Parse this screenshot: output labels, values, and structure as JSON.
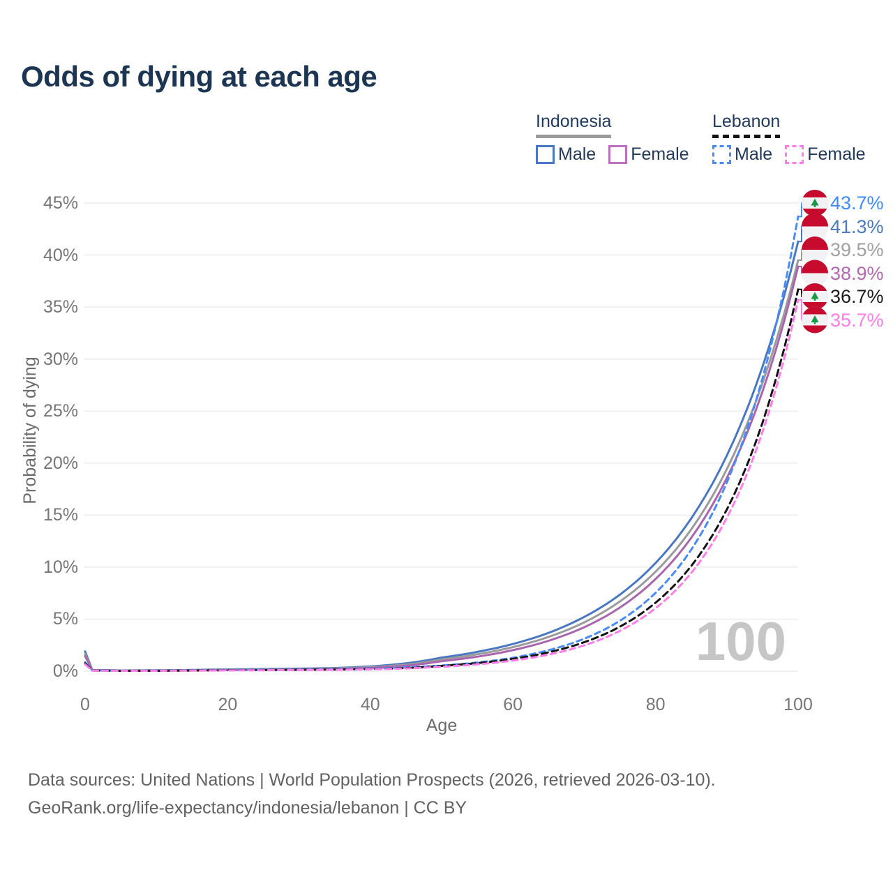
{
  "title": "Odds of dying at each age",
  "legend": {
    "groups": [
      {
        "country": "Indonesia",
        "underline_style": "solid",
        "underline_color": "#9b9b9b",
        "items": [
          {
            "label": "Male",
            "color": "#4a77c2",
            "dashed": false
          },
          {
            "label": "Female",
            "color": "#bd6fbd",
            "dashed": false
          }
        ]
      },
      {
        "country": "Lebanon",
        "underline_style": "dashed",
        "underline_color": "#141414",
        "items": [
          {
            "label": "Male",
            "color": "#4a8cf7",
            "dashed": true
          },
          {
            "label": "Female",
            "color": "#ff7de9",
            "dashed": true
          }
        ]
      }
    ]
  },
  "y_axis": {
    "label": "Probability of dying",
    "ticks": [
      "45%",
      "40%",
      "35%",
      "30%",
      "25%",
      "20%",
      "15%",
      "10%",
      "5%",
      "0%"
    ],
    "tick_values": [
      45,
      40,
      35,
      30,
      25,
      20,
      15,
      10,
      5,
      0
    ],
    "min": 0,
    "max": 45
  },
  "x_axis": {
    "label": "Age",
    "ticks": [
      "0",
      "20",
      "40",
      "60",
      "80",
      "100"
    ],
    "tick_values": [
      0,
      20,
      40,
      60,
      80,
      100
    ],
    "min": 0,
    "max": 100
  },
  "watermark": "100",
  "end_labels": [
    {
      "text": "43.7%",
      "color": "#3f8bf7",
      "flag": "lebanon",
      "series": "Lebanon Male"
    },
    {
      "text": "41.3%",
      "color": "#4a79bd",
      "flag": "indonesia",
      "series": "Indonesia Male"
    },
    {
      "text": "39.5%",
      "color": "#a0a0a3",
      "flag": "indonesia",
      "series": "Indonesia Both sexes"
    },
    {
      "text": "38.9%",
      "color": "#b468b2",
      "flag": "indonesia",
      "series": "Indonesia Female"
    },
    {
      "text": "36.7%",
      "color": "#1d1d21",
      "flag": "lebanon",
      "series": "Lebanon Both sexes"
    },
    {
      "text": "35.7%",
      "color": "#ff7de9",
      "flag": "lebanon",
      "series": "Lebanon Female"
    }
  ],
  "footer": {
    "line1": "Data sources: United Nations | World Population Prospects (2026, retrieved 2026-03-10).",
    "line2": "GeoRank.org/life-expectancy/indonesia/lebanon | CC BY"
  },
  "colors": {
    "title": "#1c3553",
    "gridline": "#ececec",
    "flag_red": "#c60b2e",
    "flag_white": "#f2f2f4",
    "cedar_green": "#169a45",
    "watermark": "#c6c6c6"
  },
  "chart_data": {
    "type": "line",
    "title": "Odds of dying at each age",
    "xlabel": "Age",
    "ylabel": "Probability of dying",
    "xlim": [
      0,
      100
    ],
    "ylim": [
      0,
      45
    ],
    "grid": "horizontal-only",
    "legend_position": "top-right",
    "x": [
      0,
      1,
      5,
      10,
      15,
      20,
      25,
      30,
      35,
      40,
      45,
      50,
      55,
      60,
      65,
      70,
      75,
      80,
      85,
      90,
      95,
      100
    ],
    "series": [
      {
        "name": "Indonesia Male",
        "country": "Indonesia",
        "sex": "male",
        "color": "#4a77c2",
        "dash": null,
        "end_label": "41.3%",
        "values": [
          1.9,
          0.12,
          0.07,
          0.08,
          0.12,
          0.17,
          0.2,
          0.24,
          0.3,
          0.45,
          0.75,
          1.31,
          1.85,
          2.61,
          3.68,
          5.21,
          7.35,
          10.39,
          14.67,
          20.72,
          29.26,
          41.3
        ]
      },
      {
        "name": "Indonesia Both sexes",
        "country": "Indonesia",
        "sex": "both",
        "color": "#9b9b9b",
        "dash": null,
        "end_label": "39.5%",
        "values": [
          1.65,
          0.11,
          0.06,
          0.07,
          0.1,
          0.14,
          0.17,
          0.2,
          0.26,
          0.38,
          0.62,
          1.13,
          1.62,
          2.31,
          3.29,
          4.69,
          6.7,
          9.55,
          13.62,
          19.42,
          27.69,
          39.5
        ]
      },
      {
        "name": "Indonesia Female",
        "country": "Indonesia",
        "sex": "female",
        "color": "#a965ad",
        "dash": null,
        "end_label": "38.9%",
        "values": [
          1.45,
          0.1,
          0.05,
          0.06,
          0.08,
          0.1,
          0.13,
          0.16,
          0.21,
          0.31,
          0.52,
          0.96,
          1.39,
          2.02,
          2.92,
          4.22,
          6.11,
          8.85,
          12.81,
          18.56,
          26.87,
          38.9
        ]
      },
      {
        "name": "Lebanon Male",
        "country": "Lebanon",
        "sex": "male",
        "color": "#4a8cf7",
        "dash": "8 6",
        "end_label": "43.7%",
        "values": [
          0.85,
          0.07,
          0.04,
          0.05,
          0.08,
          0.12,
          0.14,
          0.16,
          0.19,
          0.24,
          0.36,
          0.54,
          0.83,
          1.29,
          2.01,
          3.12,
          4.84,
          7.52,
          11.67,
          18.13,
          28.14,
          43.7
        ]
      },
      {
        "name": "Lebanon Both sexes",
        "country": "Lebanon",
        "sex": "both",
        "color": "#141414",
        "dash": "9 6",
        "end_label": "36.7%",
        "values": [
          0.75,
          0.06,
          0.035,
          0.04,
          0.06,
          0.09,
          0.11,
          0.13,
          0.15,
          0.19,
          0.3,
          0.5,
          0.77,
          1.18,
          1.81,
          2.78,
          4.27,
          6.57,
          10.1,
          15.53,
          23.87,
          36.7
        ]
      },
      {
        "name": "Lebanon Female",
        "country": "Lebanon",
        "sex": "female",
        "color": "#ff7de9",
        "dash": "8 6",
        "end_label": "35.7%",
        "values": [
          0.65,
          0.05,
          0.03,
          0.035,
          0.05,
          0.07,
          0.09,
          0.11,
          0.13,
          0.17,
          0.26,
          0.42,
          0.65,
          1.02,
          1.59,
          2.48,
          3.87,
          6.04,
          9.43,
          14.73,
          22.99,
          35.7
        ]
      }
    ]
  }
}
